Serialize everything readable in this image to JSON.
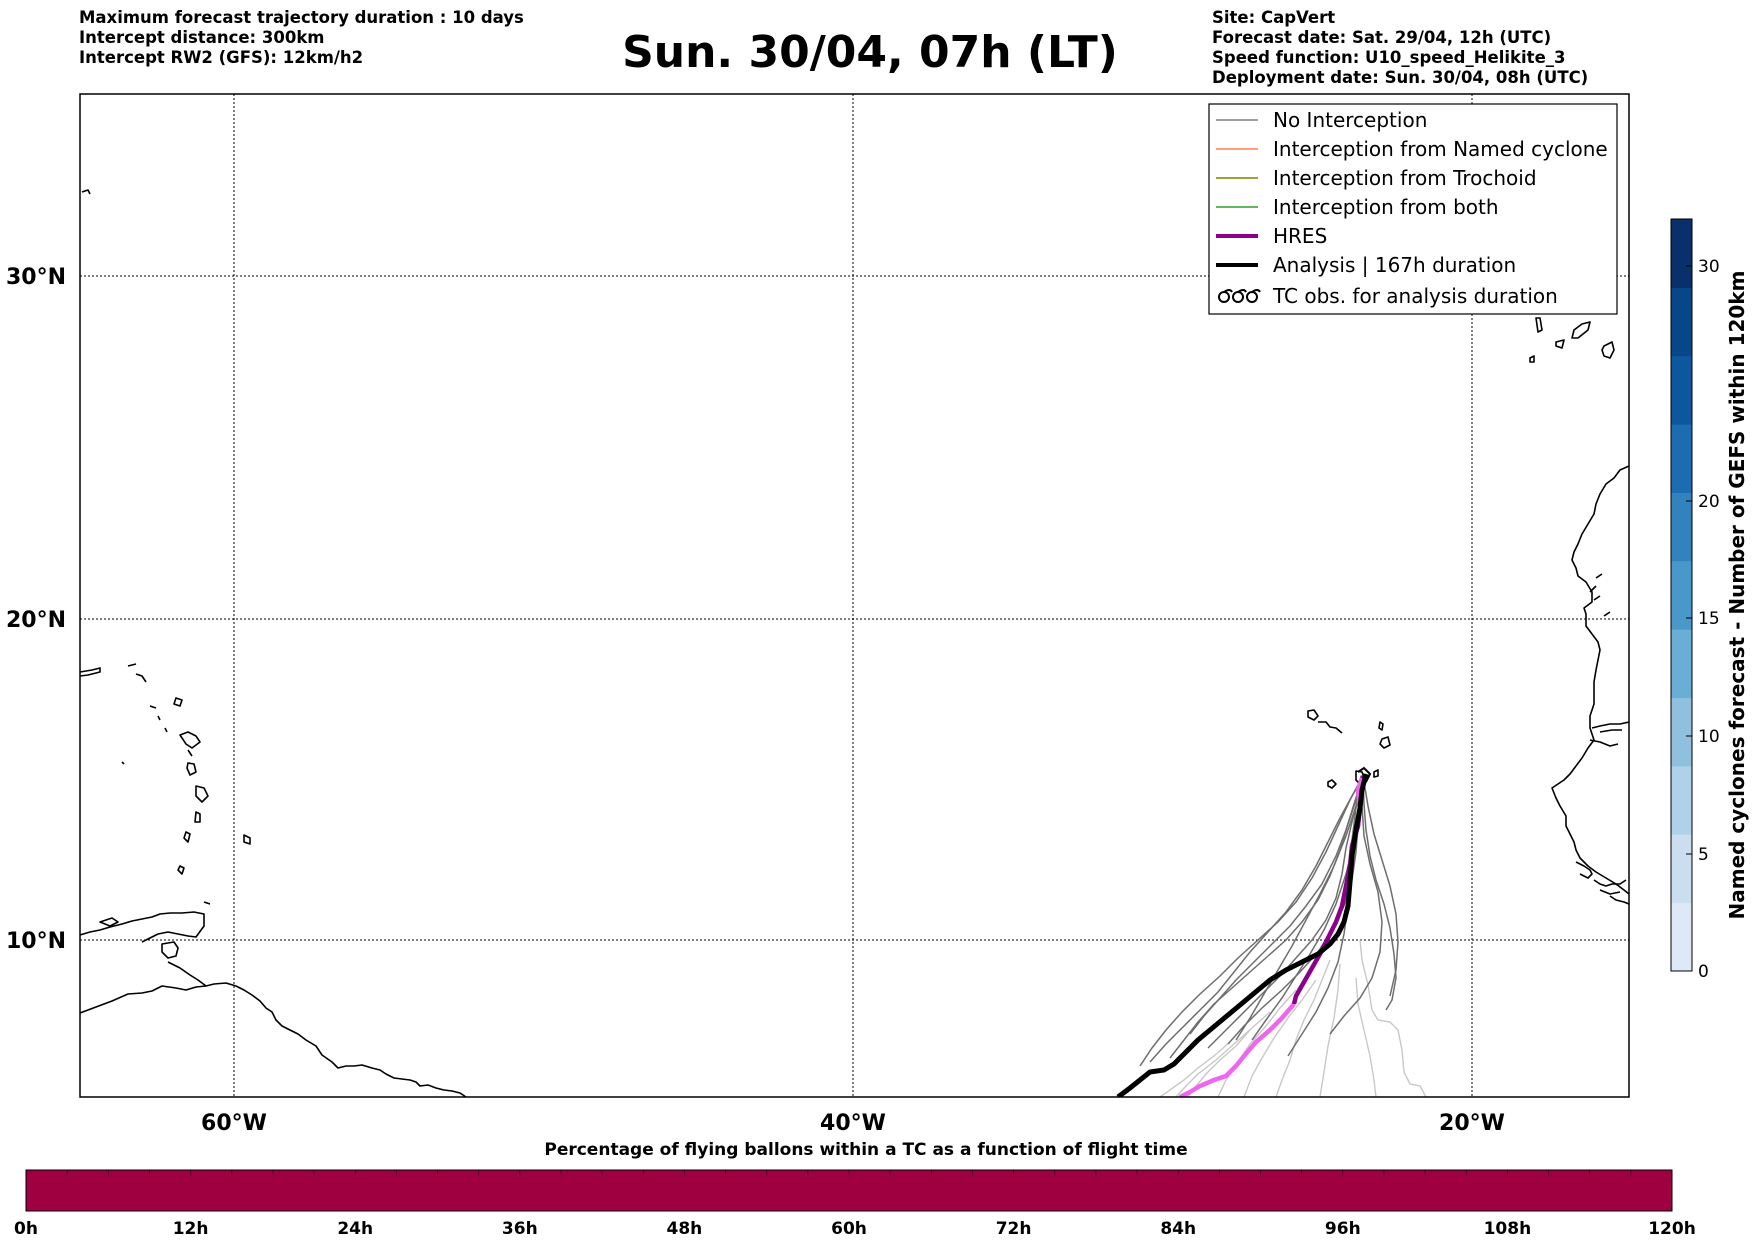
{
  "header": {
    "left_lines": [
      "Maximum forecast trajectory duration : 10 days",
      "Intercept distance: 300km",
      "Intercept RW2 (GFS):  12km/h2"
    ],
    "title": "Sun. 30/04, 07h (LT)",
    "right_lines": [
      "Site: CapVert",
      "Forecast date: Sat. 29/04, 12h (UTC)",
      "Speed function: U10_speed_Helikite_3",
      "Deployment date: Sun. 30/04, 08h (UTC)"
    ]
  },
  "map": {
    "lat_labels": [
      "30°N",
      "20°N",
      "10°N"
    ],
    "lon_labels": [
      "60°W",
      "40°W",
      "20°W"
    ],
    "gridlines": "dotted",
    "legend": {
      "position": "top-right",
      "items": [
        {
          "label": "No Interception",
          "color": "#7f7f7f",
          "style": "line-thin"
        },
        {
          "label": "Interception from Named cyclone",
          "color": "#ff7f50",
          "style": "line-thin"
        },
        {
          "label": "Interception from Trochoid",
          "color": "#808000",
          "style": "line-thin"
        },
        {
          "label": "Interception from both",
          "color": "#2ca02c",
          "style": "line-thin"
        },
        {
          "label": "HRES",
          "color": "#8b008b",
          "style": "line-thick"
        },
        {
          "label": "Analysis | 167h duration",
          "color": "#000000",
          "style": "line-thick"
        },
        {
          "label": "TC obs. for analysis duration",
          "color": "#000000",
          "style": "tc-symbols"
        }
      ]
    },
    "colors": {
      "hres": "#8b008b",
      "hres_light": "#ee66ee",
      "analysis": "#000000",
      "ensemble": "#6e6e6e",
      "ensemble_light": "#c8c8c8",
      "coast": "#000000"
    }
  },
  "colorbar": {
    "label": "Named cyclones forecast - Number of GEFS within 120km",
    "ticks": [
      "0",
      "5",
      "10",
      "15",
      "20",
      "30"
    ],
    "range": [
      0,
      32
    ],
    "colors": [
      "#dde9f6",
      "#cadef0",
      "#b0d2e8",
      "#8fc1de",
      "#6aaed6",
      "#4a98c9",
      "#3282be",
      "#1c6cb1",
      "#0d579f",
      "#08468a",
      "#08306b"
    ]
  },
  "timebar": {
    "title": "Percentage of flying ballons within a TC as a function of flight time",
    "ticks": [
      "0h",
      "12h",
      "24h",
      "36h",
      "48h",
      "60h",
      "72h",
      "84h",
      "96h",
      "108h",
      "120h"
    ],
    "fill_color": "#9e0040",
    "percent_values": [
      0,
      0,
      0,
      0,
      0,
      0,
      0,
      0,
      0,
      0,
      0,
      0,
      0,
      0,
      0,
      0,
      0,
      0,
      0,
      0,
      0,
      0,
      0,
      0,
      0,
      0,
      0,
      0,
      0,
      0,
      0,
      0,
      0,
      0,
      0,
      0,
      0,
      0,
      0,
      0
    ]
  }
}
